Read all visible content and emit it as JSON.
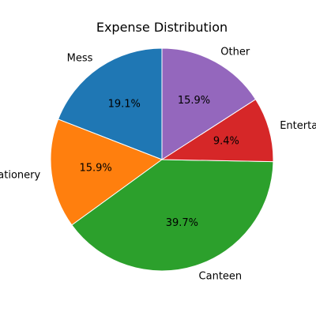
{
  "chart_data": {
    "type": "pie",
    "title": "Expense Distribution",
    "labels": [
      "Mess",
      "Stationery",
      "Canteen",
      "Entertainment",
      "Other"
    ],
    "values": [
      19.1,
      15.9,
      39.7,
      9.4,
      15.9
    ],
    "value_labels": [
      "19.1%",
      "15.9%",
      "39.7%",
      "9.4%",
      "15.9%"
    ],
    "colors": [
      "#1f77b4",
      "#ff7f0e",
      "#2ca02c",
      "#d62728",
      "#9467bd"
    ],
    "start_angle_deg": 90,
    "direction": "counterclockwise"
  }
}
